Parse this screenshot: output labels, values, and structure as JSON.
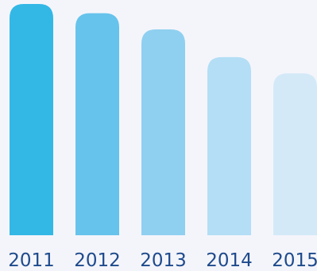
{
  "chart_data": {
    "type": "bar",
    "categories": [
      "2011",
      "2012",
      "2013",
      "2014",
      "2015"
    ],
    "values": [
      100,
      96,
      89,
      77,
      70
    ],
    "title": "",
    "xlabel": "",
    "ylabel": "",
    "ylim": [
      0,
      100
    ],
    "grid": false,
    "legend": "none",
    "colors": [
      "#33b8e6",
      "#66c3ec",
      "#8fd0f0",
      "#b3def5",
      "#d3e9f8"
    ]
  }
}
